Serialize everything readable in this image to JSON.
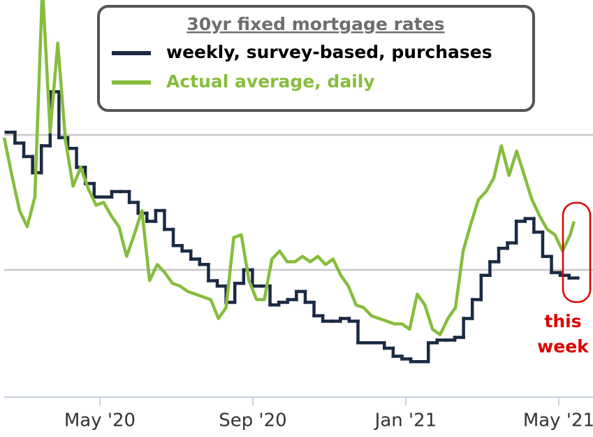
{
  "chart_data": {
    "type": "line",
    "title": "30yr fixed mortgage rates",
    "xlim": [
      1.5,
      16.6
    ],
    "xticks": [
      {
        "value": 4,
        "label": "May '20"
      },
      {
        "value": 8,
        "label": "Sep '20"
      },
      {
        "value": 12,
        "label": "Jan '21"
      },
      {
        "value": 16,
        "label": "May '21"
      }
    ],
    "ylim": [
      2.5,
      4.0
    ],
    "yticks": [
      3,
      3.5
    ],
    "grid": true,
    "series": [
      {
        "name": "weekly, survey-based, purchases",
        "color": "#1b2a44",
        "step": true,
        "x": [
          1.55,
          1.78,
          2.01,
          2.24,
          2.47,
          2.7,
          2.93,
          3.16,
          3.39,
          3.62,
          3.85,
          4.08,
          4.31,
          4.54,
          4.77,
          5.0,
          5.23,
          5.46,
          5.69,
          5.92,
          6.15,
          6.38,
          6.61,
          6.84,
          7.07,
          7.3,
          7.53,
          7.76,
          7.99,
          8.22,
          8.45,
          8.68,
          8.91,
          9.14,
          9.37,
          9.6,
          9.83,
          10.06,
          10.29,
          10.52,
          10.75,
          10.98,
          11.21,
          11.44,
          11.67,
          11.9,
          12.13,
          12.36,
          12.59,
          12.82,
          13.05,
          13.28,
          13.51,
          13.74,
          13.97,
          14.2,
          14.43,
          14.66,
          14.89,
          15.12,
          15.35,
          15.58,
          15.81,
          16.04,
          16.27
        ],
        "values": [
          3.51,
          3.47,
          3.42,
          3.36,
          3.46,
          3.66,
          3.49,
          3.45,
          3.38,
          3.32,
          3.27,
          3.27,
          3.29,
          3.29,
          3.25,
          3.21,
          3.18,
          3.22,
          3.15,
          3.09,
          3.07,
          3.04,
          3.02,
          2.96,
          2.94,
          2.88,
          2.95,
          3.0,
          2.94,
          2.94,
          2.87,
          2.88,
          2.89,
          2.92,
          2.88,
          2.83,
          2.81,
          2.81,
          2.82,
          2.81,
          2.73,
          2.73,
          2.73,
          2.71,
          2.68,
          2.67,
          2.66,
          2.66,
          2.73,
          2.74,
          2.74,
          2.75,
          2.82,
          2.89,
          2.98,
          3.03,
          3.08,
          3.1,
          3.18,
          3.19,
          3.14,
          3.05,
          2.99,
          2.98,
          2.97
        ]
      },
      {
        "name": "Actual average, daily",
        "color": "#86bd3e",
        "x": [
          1.5,
          1.7,
          1.9,
          2.1,
          2.3,
          2.5,
          2.7,
          2.9,
          3.1,
          3.3,
          3.5,
          3.7,
          3.9,
          4.1,
          4.3,
          4.5,
          4.7,
          4.9,
          5.1,
          5.3,
          5.5,
          5.7,
          5.9,
          6.1,
          6.3,
          6.5,
          6.7,
          6.9,
          7.1,
          7.3,
          7.5,
          7.7,
          7.9,
          8.1,
          8.3,
          8.5,
          8.7,
          8.9,
          9.1,
          9.3,
          9.5,
          9.7,
          9.9,
          10.1,
          10.3,
          10.5,
          10.7,
          10.9,
          11.1,
          11.3,
          11.5,
          11.7,
          11.9,
          12.1,
          12.3,
          12.5,
          12.7,
          12.9,
          13.1,
          13.3,
          13.5,
          13.7,
          13.9,
          14.1,
          14.3,
          14.5,
          14.7,
          14.9,
          15.1,
          15.3,
          15.5,
          15.7,
          15.9,
          16.1,
          16.3,
          16.4
        ],
        "values": [
          3.49,
          3.35,
          3.22,
          3.16,
          3.27,
          4.05,
          3.51,
          3.84,
          3.48,
          3.31,
          3.38,
          3.3,
          3.24,
          3.25,
          3.2,
          3.16,
          3.05,
          3.13,
          3.22,
          2.96,
          3.02,
          2.99,
          2.95,
          2.94,
          2.92,
          2.91,
          2.9,
          2.89,
          2.82,
          2.86,
          3.12,
          3.13,
          2.96,
          2.89,
          2.89,
          3.04,
          3.07,
          3.03,
          3.03,
          3.05,
          3.03,
          3.05,
          3.02,
          3.04,
          2.98,
          2.94,
          2.87,
          2.86,
          2.83,
          2.82,
          2.81,
          2.8,
          2.8,
          2.78,
          2.91,
          2.87,
          2.78,
          2.76,
          2.82,
          2.86,
          3.07,
          3.17,
          3.26,
          3.29,
          3.34,
          3.46,
          3.35,
          3.44,
          3.35,
          3.26,
          3.2,
          3.15,
          3.13,
          3.07,
          3.13,
          3.18
        ]
      }
    ],
    "annotation": {
      "lines": [
        "this",
        "week"
      ],
      "color": "#dd0000"
    }
  }
}
